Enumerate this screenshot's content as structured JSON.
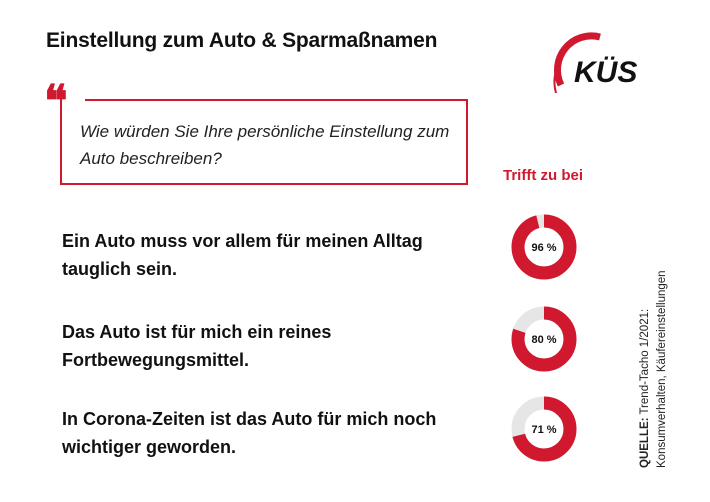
{
  "header": {
    "title": "Einstellung zum Auto & Sparmaßnamen",
    "logo_text": "KÜS"
  },
  "question": {
    "text": "Wie würden Sie Ihre persönliche Einstellung zum Auto beschreiben?"
  },
  "colors": {
    "accent": "#d0182f",
    "remainder": "#e6e6e6",
    "text": "#111111"
  },
  "chart_data": {
    "type": "pie",
    "title": "",
    "column_header": "Trifft zu bei",
    "unit": "%",
    "categories": [
      "Ein Auto muss vor allem für meinen Alltag tauglich sein.",
      "Das Auto ist für mich ein reines Fortbewegungsmittel.",
      "In Corona-Zeiten ist das Auto für mich noch wichtiger geworden."
    ],
    "values": [
      96,
      80,
      71
    ],
    "labels": [
      "96 %",
      "80 %",
      "71 %"
    ]
  },
  "source": {
    "label": "QUELLE:",
    "line1": "Trend-Tacho 1/2021:",
    "line2": "Konsumverhalten, Käufereinstellungen"
  }
}
